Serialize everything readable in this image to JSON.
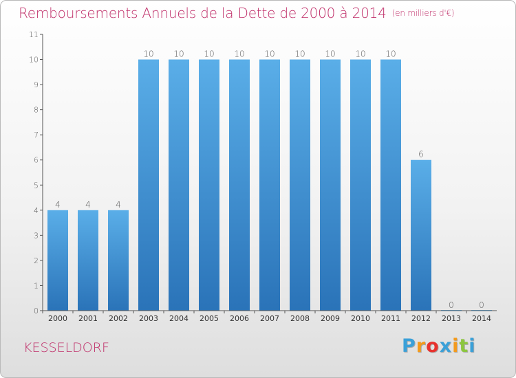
{
  "header": {
    "title": "Remboursements Annuels de la Dette de 2000 à 2014",
    "unit": "(en milliers d'€)"
  },
  "footer": {
    "place": "KESSELDORF",
    "logo_letters": [
      "P",
      "r",
      "o",
      "x",
      "i",
      "t",
      "i"
    ],
    "logo_colors": [
      "#3aa0d8",
      "#f39a1c",
      "#e8322e",
      "#3aa0d8",
      "#f39a1c",
      "#8cc63f",
      "#3aa0d8"
    ]
  },
  "colors": {
    "title": "#c0306a",
    "bar_top": "#5aaee8",
    "bar_bottom": "#2a73b8",
    "axis": "#555555"
  },
  "chart_data": {
    "type": "bar",
    "title": "Remboursements Annuels de la Dette de 2000 à 2014",
    "xlabel": "",
    "ylabel": "",
    "categories": [
      "2000",
      "2001",
      "2002",
      "2003",
      "2004",
      "2005",
      "2006",
      "2007",
      "2008",
      "2009",
      "2010",
      "2011",
      "2012",
      "2013",
      "2014"
    ],
    "values": [
      4,
      4,
      4,
      10,
      10,
      10,
      10,
      10,
      10,
      10,
      10,
      10,
      6,
      0,
      0
    ],
    "ylim": [
      0,
      11
    ],
    "yticks": [
      0,
      1,
      2,
      3,
      4,
      5,
      6,
      7,
      8,
      9,
      10,
      11
    ],
    "grid": false,
    "legend": "none"
  }
}
